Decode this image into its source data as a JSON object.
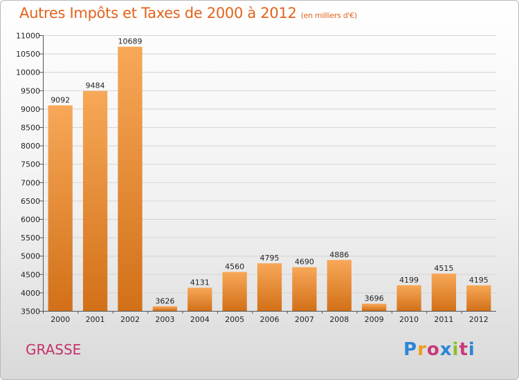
{
  "title": "Autres Impôts et Taxes de 2000 à 2012",
  "subtitle": "(en milliers d'€)",
  "city": "GRASSE",
  "logo": {
    "letters": [
      "P",
      "r",
      "o",
      "x",
      "i",
      "t",
      "i"
    ]
  },
  "colors": {
    "title": "#e2621b",
    "bar_top": "#f7a858",
    "bar_bottom": "#d27018",
    "city": "#c4306c"
  },
  "chart_data": {
    "type": "bar",
    "categories": [
      "2000",
      "2001",
      "2002",
      "2003",
      "2004",
      "2005",
      "2006",
      "2007",
      "2008",
      "2009",
      "2010",
      "2011",
      "2012"
    ],
    "values": [
      9092,
      9484,
      10689,
      3626,
      4131,
      4560,
      4795,
      4690,
      4886,
      3696,
      4199,
      4515,
      4195
    ],
    "ylim": [
      3500,
      11000
    ],
    "yticks": [
      3500,
      4000,
      4500,
      5000,
      5500,
      6000,
      6500,
      7000,
      7500,
      8000,
      8500,
      9000,
      9500,
      10000,
      10500,
      11000
    ],
    "grid": true,
    "title": "Autres Impôts et Taxes de 2000 à 2012",
    "xlabel": "",
    "ylabel": ""
  }
}
